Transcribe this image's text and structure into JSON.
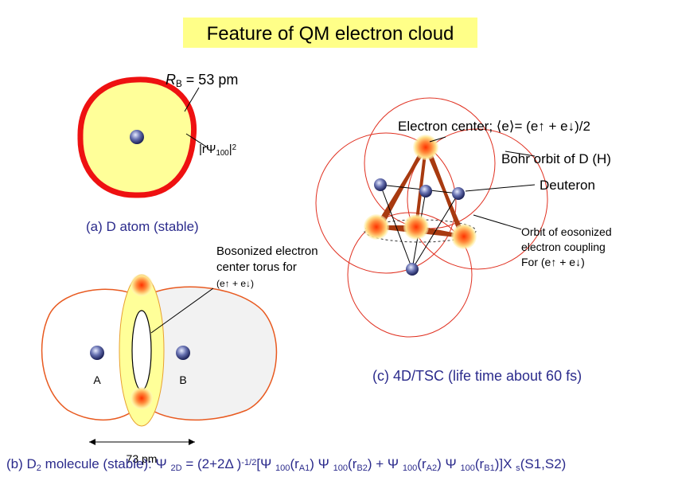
{
  "title": "Feature of QM electron cloud",
  "panel_a": {
    "radius_label": [
      {
        "text": "R",
        "italic": true
      },
      {
        "text": "B",
        "sub": true
      },
      {
        "text": " = 53 pm"
      }
    ],
    "density_label": [
      {
        "text": "|"
      },
      {
        "text": "rΨ"
      },
      {
        "text": "100",
        "sub": true
      },
      {
        "text": "|"
      },
      {
        "text": "2",
        "sup": true
      }
    ],
    "caption": "(a) D atom (stable)"
  },
  "panel_b": {
    "torus_label": [
      "Bosonized electron",
      "center torus for"
    ],
    "spin_label": "(e↑ + e↓)",
    "nucleus_a": "A",
    "nucleus_b": "B",
    "distance": "73 pm",
    "formula": [
      {
        "text": "(b) D"
      },
      {
        "text": "2",
        "sub": true
      },
      {
        "text": " molecule (stable): Ψ "
      },
      {
        "text": "2D",
        "sub": true
      },
      {
        "text": " = (2+2Δ )"
      },
      {
        "text": "-1/2",
        "sup": true
      },
      {
        "text": "[Ψ "
      },
      {
        "text": "100",
        "sub": true
      },
      {
        "text": "(r"
      },
      {
        "text": "A1",
        "sub": true
      },
      {
        "text": ") Ψ "
      },
      {
        "text": "100",
        "sub": true
      },
      {
        "text": "(r"
      },
      {
        "text": "B2",
        "sub": true
      },
      {
        "text": ") + Ψ "
      },
      {
        "text": "100",
        "sub": true
      },
      {
        "text": "(r"
      },
      {
        "text": "A2",
        "sub": true
      },
      {
        "text": ") Ψ "
      },
      {
        "text": "100",
        "sub": true
      },
      {
        "text": "(r"
      },
      {
        "text": "B1",
        "sub": true
      },
      {
        "text": ")]X "
      },
      {
        "text": "s",
        "sub": true
      },
      {
        "text": "(S1,S2)"
      }
    ]
  },
  "panel_c": {
    "electron_center": "Electron center; ⟨e⟩= (e↑ + e↓)/2",
    "bohr_orbit": "Bohr orbit of D (H)",
    "deuteron": "Deuteron",
    "orbit_label": [
      "Orbit of eosonized",
      "electron coupling",
      "For (e↑ + e↓)"
    ],
    "caption": "(c) 4D/TSC (life time about 60 fs)"
  }
}
